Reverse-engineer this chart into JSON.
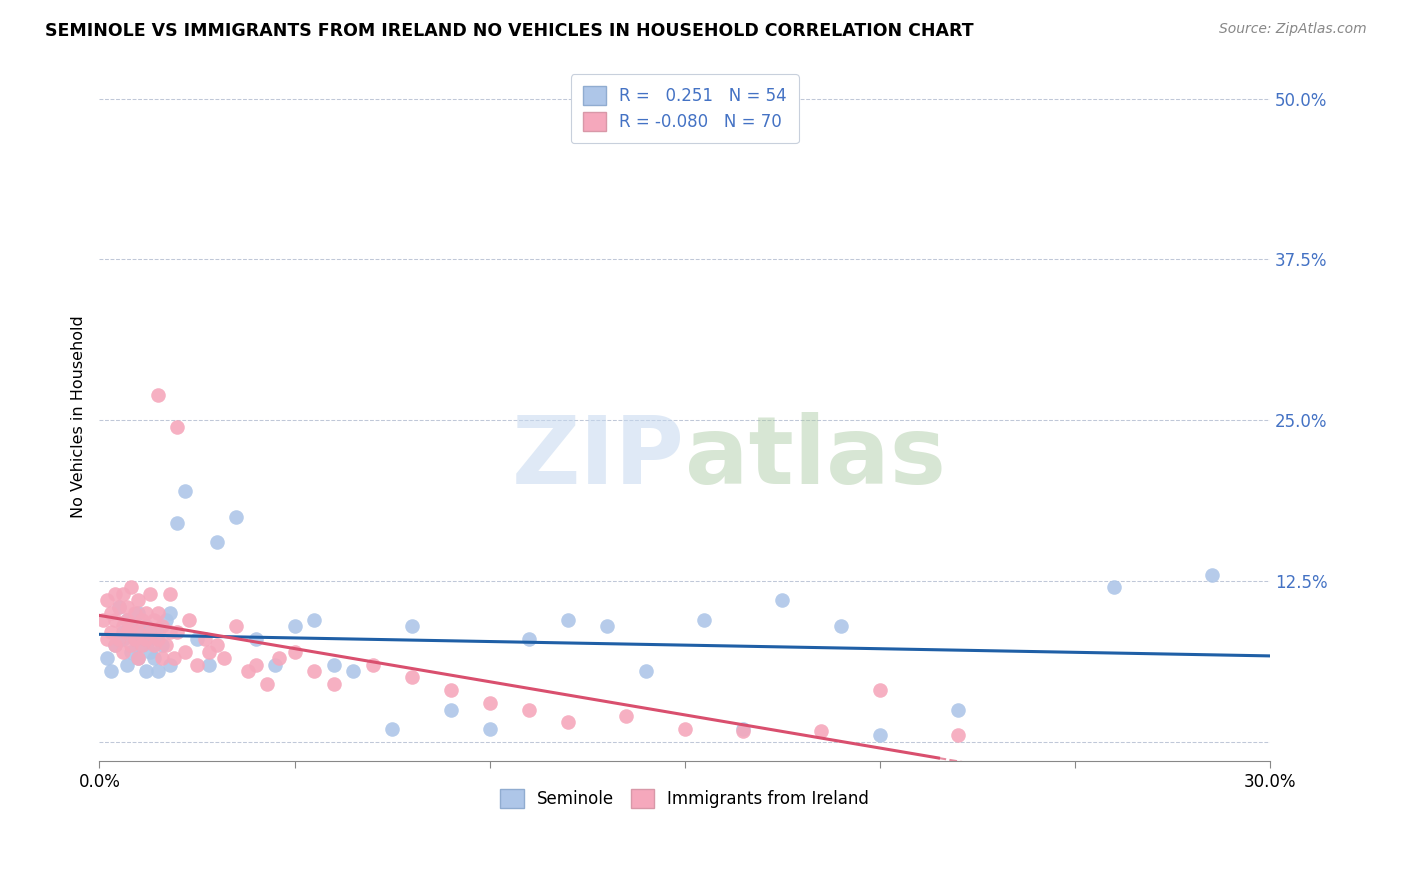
{
  "title": "SEMINOLE VS IMMIGRANTS FROM IRELAND NO VEHICLES IN HOUSEHOLD CORRELATION CHART",
  "source": "Source: ZipAtlas.com",
  "ylabel": "No Vehicles in Household",
  "ytick_labels": [
    "",
    "12.5%",
    "25.0%",
    "37.5%",
    "50.0%"
  ],
  "yticks": [
    0.0,
    0.125,
    0.25,
    0.375,
    0.5
  ],
  "xlim": [
    0.0,
    0.3
  ],
  "ylim": [
    -0.015,
    0.52
  ],
  "R_blue": 0.251,
  "N_blue": 54,
  "R_pink": -0.08,
  "N_pink": 70,
  "legend_label_blue": "Seminole",
  "legend_label_pink": "Immigrants from Ireland",
  "watermark_zip": "ZIP",
  "watermark_atlas": "atlas",
  "blue_color": "#aec6e8",
  "pink_color": "#f5a8bc",
  "line_blue": "#1f5fa6",
  "line_pink": "#d94f6e",
  "title_fontsize": 12.5,
  "source_fontsize": 10,
  "blue_scatter_x": [
    0.002,
    0.003,
    0.004,
    0.005,
    0.006,
    0.006,
    0.007,
    0.007,
    0.008,
    0.008,
    0.009,
    0.01,
    0.01,
    0.011,
    0.011,
    0.012,
    0.012,
    0.013,
    0.013,
    0.014,
    0.015,
    0.015,
    0.016,
    0.017,
    0.018,
    0.018,
    0.02,
    0.022,
    0.025,
    0.028,
    0.03,
    0.035,
    0.04,
    0.045,
    0.05,
    0.055,
    0.06,
    0.065,
    0.075,
    0.08,
    0.09,
    0.1,
    0.11,
    0.12,
    0.13,
    0.14,
    0.155,
    0.165,
    0.175,
    0.19,
    0.2,
    0.22,
    0.26,
    0.285
  ],
  "blue_scatter_y": [
    0.065,
    0.055,
    0.075,
    0.105,
    0.08,
    0.085,
    0.06,
    0.095,
    0.07,
    0.09,
    0.08,
    0.065,
    0.1,
    0.075,
    0.085,
    0.055,
    0.09,
    0.07,
    0.08,
    0.065,
    0.055,
    0.085,
    0.075,
    0.095,
    0.06,
    0.1,
    0.17,
    0.195,
    0.08,
    0.06,
    0.155,
    0.175,
    0.08,
    0.06,
    0.09,
    0.095,
    0.06,
    0.055,
    0.01,
    0.09,
    0.025,
    0.01,
    0.08,
    0.095,
    0.09,
    0.055,
    0.095,
    0.01,
    0.11,
    0.09,
    0.005,
    0.025,
    0.12,
    0.13
  ],
  "pink_scatter_x": [
    0.001,
    0.002,
    0.002,
    0.003,
    0.003,
    0.004,
    0.004,
    0.004,
    0.005,
    0.005,
    0.006,
    0.006,
    0.006,
    0.007,
    0.007,
    0.007,
    0.008,
    0.008,
    0.008,
    0.009,
    0.009,
    0.01,
    0.01,
    0.01,
    0.011,
    0.011,
    0.012,
    0.012,
    0.013,
    0.013,
    0.014,
    0.014,
    0.015,
    0.015,
    0.015,
    0.016,
    0.016,
    0.017,
    0.018,
    0.018,
    0.019,
    0.02,
    0.02,
    0.022,
    0.023,
    0.025,
    0.027,
    0.028,
    0.03,
    0.032,
    0.035,
    0.038,
    0.04,
    0.043,
    0.046,
    0.05,
    0.055,
    0.06,
    0.07,
    0.08,
    0.09,
    0.1,
    0.11,
    0.12,
    0.135,
    0.15,
    0.165,
    0.185,
    0.2,
    0.22
  ],
  "pink_scatter_y": [
    0.095,
    0.08,
    0.11,
    0.085,
    0.1,
    0.075,
    0.095,
    0.115,
    0.08,
    0.105,
    0.07,
    0.09,
    0.115,
    0.085,
    0.095,
    0.105,
    0.075,
    0.09,
    0.12,
    0.08,
    0.1,
    0.065,
    0.085,
    0.11,
    0.075,
    0.095,
    0.08,
    0.1,
    0.085,
    0.115,
    0.075,
    0.095,
    0.27,
    0.08,
    0.1,
    0.065,
    0.09,
    0.075,
    0.085,
    0.115,
    0.065,
    0.245,
    0.085,
    0.07,
    0.095,
    0.06,
    0.08,
    0.07,
    0.075,
    0.065,
    0.09,
    0.055,
    0.06,
    0.045,
    0.065,
    0.07,
    0.055,
    0.045,
    0.06,
    0.05,
    0.04,
    0.03,
    0.025,
    0.015,
    0.02,
    0.01,
    0.008,
    0.008,
    0.04,
    0.005
  ]
}
